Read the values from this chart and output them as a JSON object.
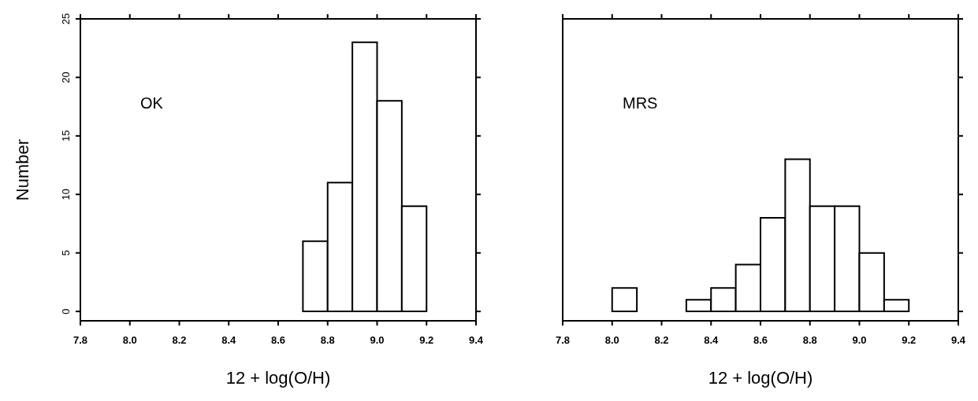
{
  "chart_data": [
    {
      "type": "histogram",
      "xlabel": "12 + log(O/H)",
      "ylabel": "Number",
      "annotations": [
        "OK"
      ],
      "color": "#ffffff",
      "bins": [
        8.7,
        8.8,
        8.9,
        9.0,
        9.1,
        9.2
      ],
      "values": [
        6,
        11,
        23,
        18,
        9
      ],
      "xlim": [
        7.8,
        9.4
      ],
      "xticks": [
        {
          "value": 7.8,
          "label": "7.8"
        },
        {
          "value": 8.0,
          "label": "8.0"
        },
        {
          "value": 8.2,
          "label": "8.2"
        },
        {
          "value": 8.4,
          "label": "8.4"
        },
        {
          "value": 8.6,
          "label": "8.6"
        },
        {
          "value": 8.8,
          "label": "8.8"
        },
        {
          "value": 9.0,
          "label": "9.0"
        },
        {
          "value": 9.2,
          "label": "9.2"
        },
        {
          "value": 9.4,
          "label": "9.4"
        }
      ],
      "ylim": [
        -0.8,
        25
      ],
      "yticks": [
        0,
        5,
        10,
        15,
        20,
        25
      ]
    },
    {
      "type": "histogram",
      "xlabel": "12 + log(O/H)",
      "annotations": [
        "MRS"
      ],
      "color": "#ffffff",
      "tick_labels": "x",
      "bins": [
        8.0,
        8.1,
        8.2,
        8.3,
        8.4,
        8.5,
        8.6,
        8.7,
        8.8,
        8.9,
        9.0,
        9.1,
        9.2
      ],
      "values": [
        2,
        0,
        0,
        1,
        2,
        4,
        8,
        13,
        9,
        9,
        5,
        1
      ],
      "xlim": [
        7.8,
        9.4
      ],
      "xticks": [
        {
          "value": 7.8,
          "label": "7.8"
        },
        {
          "value": 8.0,
          "label": "8.0"
        },
        {
          "value": 8.2,
          "label": "8.2"
        },
        {
          "value": 8.4,
          "label": "8.4"
        },
        {
          "value": 8.6,
          "label": "8.6"
        },
        {
          "value": 8.8,
          "label": "8.8"
        },
        {
          "value": 9.0,
          "label": "9.0"
        },
        {
          "value": 9.2,
          "label": "9.2"
        },
        {
          "value": 9.4,
          "label": "9.4"
        }
      ],
      "ylim": [
        -0.8,
        25
      ],
      "yticks": [
        0,
        5,
        10,
        15,
        20,
        25
      ]
    }
  ]
}
